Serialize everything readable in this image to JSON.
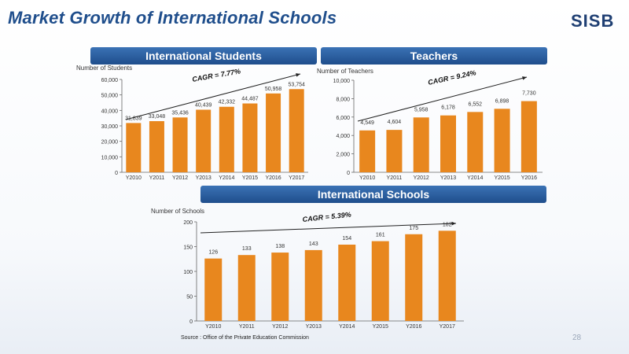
{
  "header": {
    "title": "Market Growth of International Schools",
    "logo": "SISB"
  },
  "footer": {
    "source": "Source : Office of the Private Education Commission",
    "page_number": "28"
  },
  "chart_data": [
    {
      "type": "bar",
      "title": "International Students",
      "ylabel": "Number of Students",
      "categories": [
        "Y2010",
        "Y2011",
        "Y2012",
        "Y2013",
        "Y2014",
        "Y2015",
        "Y2016",
        "Y2017"
      ],
      "values": [
        31839,
        33048,
        35436,
        40439,
        42332,
        44487,
        50958,
        53754
      ],
      "value_labels": [
        "31,839",
        "33,048",
        "35,436",
        "40,439",
        "42,332",
        "44,487",
        "50,958",
        "53,754"
      ],
      "yticks": [
        "0",
        "10,000",
        "20,000",
        "30,000",
        "40,000",
        "50,000",
        "60,000"
      ],
      "ylim": [
        0,
        60000
      ],
      "annotation": "CAGR = 7.77%",
      "color": "#e8871e"
    },
    {
      "type": "bar",
      "title": "Teachers",
      "ylabel": "Number of Teachers",
      "categories": [
        "Y2010",
        "Y2011",
        "Y2012",
        "Y2013",
        "Y2014",
        "Y2015",
        "Y2016"
      ],
      "values": [
        4549,
        4604,
        5958,
        6178,
        6552,
        6898,
        7730
      ],
      "value_labels": [
        "4,549",
        "4,604",
        "5,958",
        "6,178",
        "6,552",
        "6,898",
        "7,730"
      ],
      "yticks": [
        "0",
        "2,000",
        "4,000",
        "6,000",
        "8,000",
        "10,000"
      ],
      "ylim": [
        0,
        10000
      ],
      "annotation": "CAGR = 9.24%",
      "color": "#e8871e"
    },
    {
      "type": "bar",
      "title": "International Schools",
      "ylabel": "Number of Schools",
      "categories": [
        "Y2010",
        "Y2011",
        "Y2012",
        "Y2013",
        "Y2014",
        "Y2015",
        "Y2016",
        "Y2017"
      ],
      "values": [
        126,
        133,
        138,
        143,
        154,
        161,
        175,
        182
      ],
      "value_labels": [
        "126",
        "133",
        "138",
        "143",
        "154",
        "161",
        "175",
        "182"
      ],
      "yticks": [
        "0",
        "50",
        "100",
        "150",
        "200"
      ],
      "ylim": [
        0,
        200
      ],
      "annotation": "CAGR = 5.39%",
      "color": "#e8871e"
    }
  ]
}
